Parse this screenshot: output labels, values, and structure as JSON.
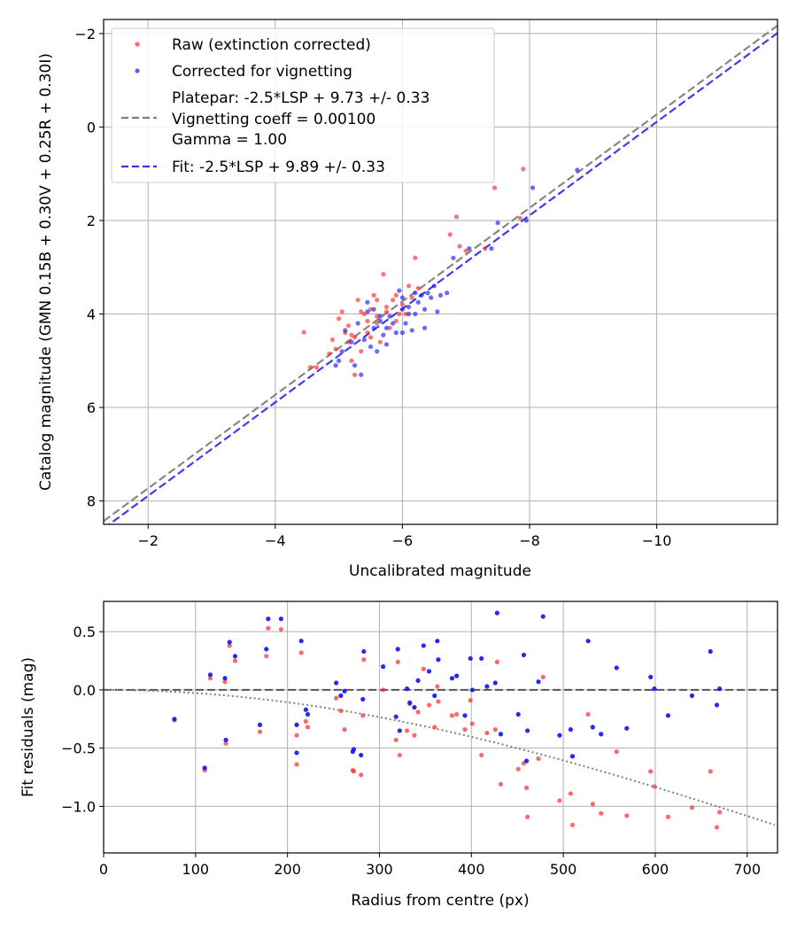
{
  "chart_data": [
    {
      "type": "scatter",
      "panel": "calibration",
      "xlabel": "Uncalibrated magnitude",
      "ylabel": "Catalog magnitude (GMN 0.15B + 0.30V + 0.25R + 0.30I)",
      "xlim": [
        -1.3,
        -11.9
      ],
      "ylim": [
        8.5,
        -2.3
      ],
      "x_inverted": true,
      "y_inverted": true,
      "grid": true,
      "legend_position": "upper-left",
      "xticks": [
        -2,
        -4,
        -6,
        -8,
        -10
      ],
      "xtick_labels": [
        "−2",
        "−4",
        "−6",
        "−8",
        "−10"
      ],
      "yticks": [
        -2,
        0,
        2,
        4,
        6,
        8
      ],
      "ytick_labels": [
        "−2",
        "0",
        "2",
        "4",
        "6",
        "8"
      ],
      "legend": {
        "raw": "Raw (extinction corrected)",
        "corrected": "Corrected for vignetting",
        "platepar_lines": [
          "Platepar: -2.5*LSP + 9.73 +/- 0.33",
          "Vignetting coeff = 0.00100",
          "Gamma = 1.00"
        ],
        "fit": "Fit: -2.5*LSP + 9.89 +/- 0.33"
      },
      "series": [
        {
          "name": "Raw (extinction corrected)",
          "color": "#ff2a2a",
          "points": [
            [
              -4.45,
              4.39
            ],
            [
              -4.55,
              5.14
            ],
            [
              -4.65,
              5.14
            ],
            [
              -4.85,
              4.85
            ],
            [
              -4.9,
              4.55
            ],
            [
              -4.95,
              4.75
            ],
            [
              -5.0,
              4.1
            ],
            [
              -5.05,
              3.95
            ],
            [
              -5.1,
              4.4
            ],
            [
              -5.15,
              4.25
            ],
            [
              -5.15,
              4.6
            ],
            [
              -5.2,
              5.0
            ],
            [
              -5.25,
              4.5
            ],
            [
              -5.25,
              5.3
            ],
            [
              -5.3,
              3.7
            ],
            [
              -5.35,
              4.8
            ],
            [
              -5.4,
              4.0
            ],
            [
              -5.45,
              4.4
            ],
            [
              -5.5,
              3.9
            ],
            [
              -5.55,
              3.6
            ],
            [
              -5.6,
              4.2
            ],
            [
              -5.6,
              3.7
            ],
            [
              -5.65,
              4.6
            ],
            [
              -5.7,
              3.15
            ],
            [
              -5.75,
              3.85
            ],
            [
              -5.8,
              4.3
            ],
            [
              -5.85,
              3.7
            ],
            [
              -5.9,
              3.6
            ],
            [
              -5.95,
              4.0
            ],
            [
              -6.0,
              3.8
            ],
            [
              -6.05,
              4.0
            ],
            [
              -6.1,
              3.4
            ],
            [
              -6.2,
              2.8
            ],
            [
              -5.35,
              3.95
            ],
            [
              -5.2,
              4.45
            ],
            [
              -5.45,
              4.15
            ],
            [
              -5.75,
              3.95
            ],
            [
              -5.9,
              4.15
            ],
            [
              -6.15,
              3.65
            ],
            [
              -6.25,
              3.45
            ],
            [
              -6.75,
              2.3
            ],
            [
              -6.85,
              1.92
            ],
            [
              -6.9,
              2.55
            ],
            [
              -7.0,
              2.65
            ],
            [
              -7.3,
              2.6
            ],
            [
              -7.45,
              1.3
            ],
            [
              -7.9,
              0.9
            ],
            [
              -7.85,
              1.95
            ],
            [
              -5.6,
              4.05
            ],
            [
              -5.5,
              4.5
            ]
          ]
        },
        {
          "name": "Corrected for vignetting",
          "color": "#1a1aff",
          "points": [
            [
              -4.95,
              5.1
            ],
            [
              -5.0,
              5.0
            ],
            [
              -5.05,
              4.8
            ],
            [
              -5.1,
              4.35
            ],
            [
              -5.2,
              4.6
            ],
            [
              -5.25,
              5.1
            ],
            [
              -5.3,
              4.2
            ],
            [
              -5.35,
              5.3
            ],
            [
              -5.4,
              4.55
            ],
            [
              -5.45,
              3.95
            ],
            [
              -5.5,
              4.7
            ],
            [
              -5.55,
              4.3
            ],
            [
              -5.6,
              4.8
            ],
            [
              -5.65,
              4.05
            ],
            [
              -5.7,
              4.45
            ],
            [
              -5.75,
              4.65
            ],
            [
              -5.8,
              4.05
            ],
            [
              -5.85,
              4.2
            ],
            [
              -5.9,
              4.4
            ],
            [
              -5.95,
              3.5
            ],
            [
              -6.0,
              3.65
            ],
            [
              -6.05,
              4.2
            ],
            [
              -6.1,
              3.85
            ],
            [
              -6.15,
              4.35
            ],
            [
              -6.2,
              4.0
            ],
            [
              -6.3,
              3.6
            ],
            [
              -6.35,
              3.9
            ],
            [
              -6.4,
              3.55
            ],
            [
              -6.5,
              3.4
            ],
            [
              -6.55,
              3.95
            ],
            [
              -6.6,
              3.6
            ],
            [
              -6.7,
              3.55
            ],
            [
              -6.35,
              4.3
            ],
            [
              -6.25,
              3.75
            ],
            [
              -5.55,
              3.9
            ],
            [
              -5.75,
              4.3
            ],
            [
              -6.0,
              4.4
            ],
            [
              -6.2,
              3.55
            ],
            [
              -6.45,
              3.65
            ],
            [
              -6.8,
              2.8
            ],
            [
              -7.05,
              2.6
            ],
            [
              -7.4,
              2.6
            ],
            [
              -7.5,
              2.05
            ],
            [
              -7.95,
              2.0
            ],
            [
              -8.05,
              1.3
            ],
            [
              -8.75,
              0.92
            ],
            [
              -5.45,
              3.75
            ],
            [
              -5.65,
              4.15
            ],
            [
              -6.1,
              4.0
            ],
            [
              -6.0,
              3.9
            ]
          ]
        }
      ],
      "lines": [
        {
          "name": "Platepar",
          "intercept": 9.73,
          "slope": 1,
          "color": "#7f7f7f",
          "style": "dashed"
        },
        {
          "name": "Fit",
          "intercept": 9.89,
          "slope": 1,
          "color": "#3333ee",
          "style": "dashed"
        }
      ]
    },
    {
      "type": "scatter",
      "panel": "residuals",
      "xlabel": "Radius from centre (px)",
      "ylabel": "Fit residuals (mag)",
      "xlim": [
        0,
        733
      ],
      "ylim": [
        -1.4,
        0.76
      ],
      "grid": true,
      "xticks": [
        0,
        100,
        200,
        300,
        400,
        500,
        600,
        700
      ],
      "xtick_labels": [
        "0",
        "100",
        "200",
        "300",
        "400",
        "500",
        "600",
        "700"
      ],
      "yticks": [
        0.5,
        0.0,
        -0.5,
        -1.0
      ],
      "ytick_labels": [
        "0.5",
        "0.0",
        "−0.5",
        "−1.0"
      ],
      "series": [
        {
          "name": "Blue residuals",
          "color": "#1a1aff",
          "points": [
            [
              77,
              -0.25
            ],
            [
              110,
              -0.67
            ],
            [
              116,
              0.13
            ],
            [
              132,
              0.1
            ],
            [
              133,
              -0.43
            ],
            [
              137,
              0.41
            ],
            [
              143,
              0.29
            ],
            [
              170,
              -0.3
            ],
            [
              177,
              0.35
            ],
            [
              179,
              0.61
            ],
            [
              193,
              0.61
            ],
            [
              210,
              -0.3
            ],
            [
              210,
              -0.54
            ],
            [
              215,
              0.42
            ],
            [
              220,
              -0.17
            ],
            [
              222,
              -0.21
            ],
            [
              253,
              0.06
            ],
            [
              258,
              -0.05
            ],
            [
              262,
              -0.01
            ],
            [
              271,
              -0.53
            ],
            [
              272,
              -0.51
            ],
            [
              280,
              -0.56
            ],
            [
              283,
              0.33
            ],
            [
              282,
              -0.08
            ],
            [
              304,
              0.2
            ],
            [
              318,
              -0.23
            ],
            [
              320,
              0.35
            ],
            [
              322,
              -0.35
            ],
            [
              330,
              0.01
            ],
            [
              333,
              -0.11
            ],
            [
              338,
              -0.15
            ],
            [
              342,
              0.08
            ],
            [
              348,
              0.38
            ],
            [
              354,
              0.16
            ],
            [
              360,
              -0.05
            ],
            [
              363,
              0.42
            ],
            [
              364,
              0.26
            ],
            [
              379,
              0.1
            ],
            [
              384,
              0.12
            ],
            [
              393,
              -0.22
            ],
            [
              399,
              0.27
            ],
            [
              401,
              0.0
            ],
            [
              411,
              0.27
            ],
            [
              417,
              0.03
            ],
            [
              426,
              0.06
            ],
            [
              428,
              0.66
            ],
            [
              432,
              -0.38
            ],
            [
              451,
              -0.21
            ],
            [
              457,
              0.3
            ],
            [
              460,
              -0.61
            ],
            [
              461,
              -0.35
            ],
            [
              473,
              0.07
            ],
            [
              478,
              0.63
            ],
            [
              496,
              -0.39
            ],
            [
              508,
              -0.34
            ],
            [
              510,
              -0.57
            ],
            [
              527,
              0.42
            ],
            [
              532,
              -0.32
            ],
            [
              541,
              -0.38
            ],
            [
              558,
              0.19
            ],
            [
              569,
              -0.33
            ],
            [
              595,
              0.11
            ],
            [
              599,
              0.01
            ],
            [
              614,
              -0.22
            ],
            [
              640,
              -0.05
            ],
            [
              660,
              0.33
            ],
            [
              667,
              -0.13
            ],
            [
              670,
              0.01
            ]
          ]
        },
        {
          "name": "Red residuals",
          "color": "#ff2a2a",
          "points": [
            [
              77,
              -0.26
            ],
            [
              110,
              -0.69
            ],
            [
              116,
              0.1
            ],
            [
              132,
              0.07
            ],
            [
              133,
              -0.46
            ],
            [
              137,
              0.38
            ],
            [
              143,
              0.25
            ],
            [
              170,
              -0.36
            ],
            [
              177,
              0.29
            ],
            [
              179,
              0.53
            ],
            [
              193,
              0.52
            ],
            [
              210,
              -0.39
            ],
            [
              210,
              -0.64
            ],
            [
              215,
              0.32
            ],
            [
              220,
              -0.27
            ],
            [
              222,
              -0.32
            ],
            [
              253,
              -0.07
            ],
            [
              258,
              -0.18
            ],
            [
              262,
              -0.34
            ],
            [
              271,
              -0.69
            ],
            [
              272,
              -0.7
            ],
            [
              280,
              -0.73
            ],
            [
              283,
              0.26
            ],
            [
              282,
              -0.22
            ],
            [
              304,
              0.0
            ],
            [
              318,
              -0.43
            ],
            [
              320,
              0.24
            ],
            [
              322,
              -0.56
            ],
            [
              330,
              -0.35
            ],
            [
              333,
              -0.12
            ],
            [
              338,
              -0.39
            ],
            [
              342,
              -0.19
            ],
            [
              348,
              0.18
            ],
            [
              354,
              -0.13
            ],
            [
              360,
              -0.32
            ],
            [
              363,
              0.03
            ],
            [
              364,
              -0.1
            ],
            [
              379,
              -0.22
            ],
            [
              384,
              -0.21
            ],
            [
              393,
              -0.34
            ],
            [
              399,
              -0.09
            ],
            [
              401,
              -0.29
            ],
            [
              411,
              -0.56
            ],
            [
              417,
              -0.37
            ],
            [
              426,
              -0.34
            ],
            [
              428,
              0.24
            ],
            [
              432,
              -0.81
            ],
            [
              451,
              -0.68
            ],
            [
              457,
              -0.63
            ],
            [
              460,
              -0.84
            ],
            [
              461,
              -1.09
            ],
            [
              473,
              -0.59
            ],
            [
              478,
              0.11
            ],
            [
              496,
              -0.95
            ],
            [
              508,
              -0.89
            ],
            [
              510,
              -1.16
            ],
            [
              527,
              -0.21
            ],
            [
              532,
              -0.98
            ],
            [
              541,
              -1.06
            ],
            [
              558,
              -0.53
            ],
            [
              569,
              -1.08
            ],
            [
              595,
              -0.7
            ],
            [
              599,
              -0.83
            ],
            [
              614,
              -1.09
            ],
            [
              640,
              -1.01
            ],
            [
              660,
              -0.7
            ],
            [
              667,
              -1.18
            ],
            [
              670,
              -1.05
            ]
          ]
        }
      ],
      "lines": [
        {
          "name": "Zero line",
          "value": 0.0,
          "color": "#555555",
          "style": "dashed"
        },
        {
          "name": "Vignetting model",
          "coeff": 0.001,
          "color": "#7f7f7f",
          "style": "dotted"
        }
      ]
    }
  ]
}
